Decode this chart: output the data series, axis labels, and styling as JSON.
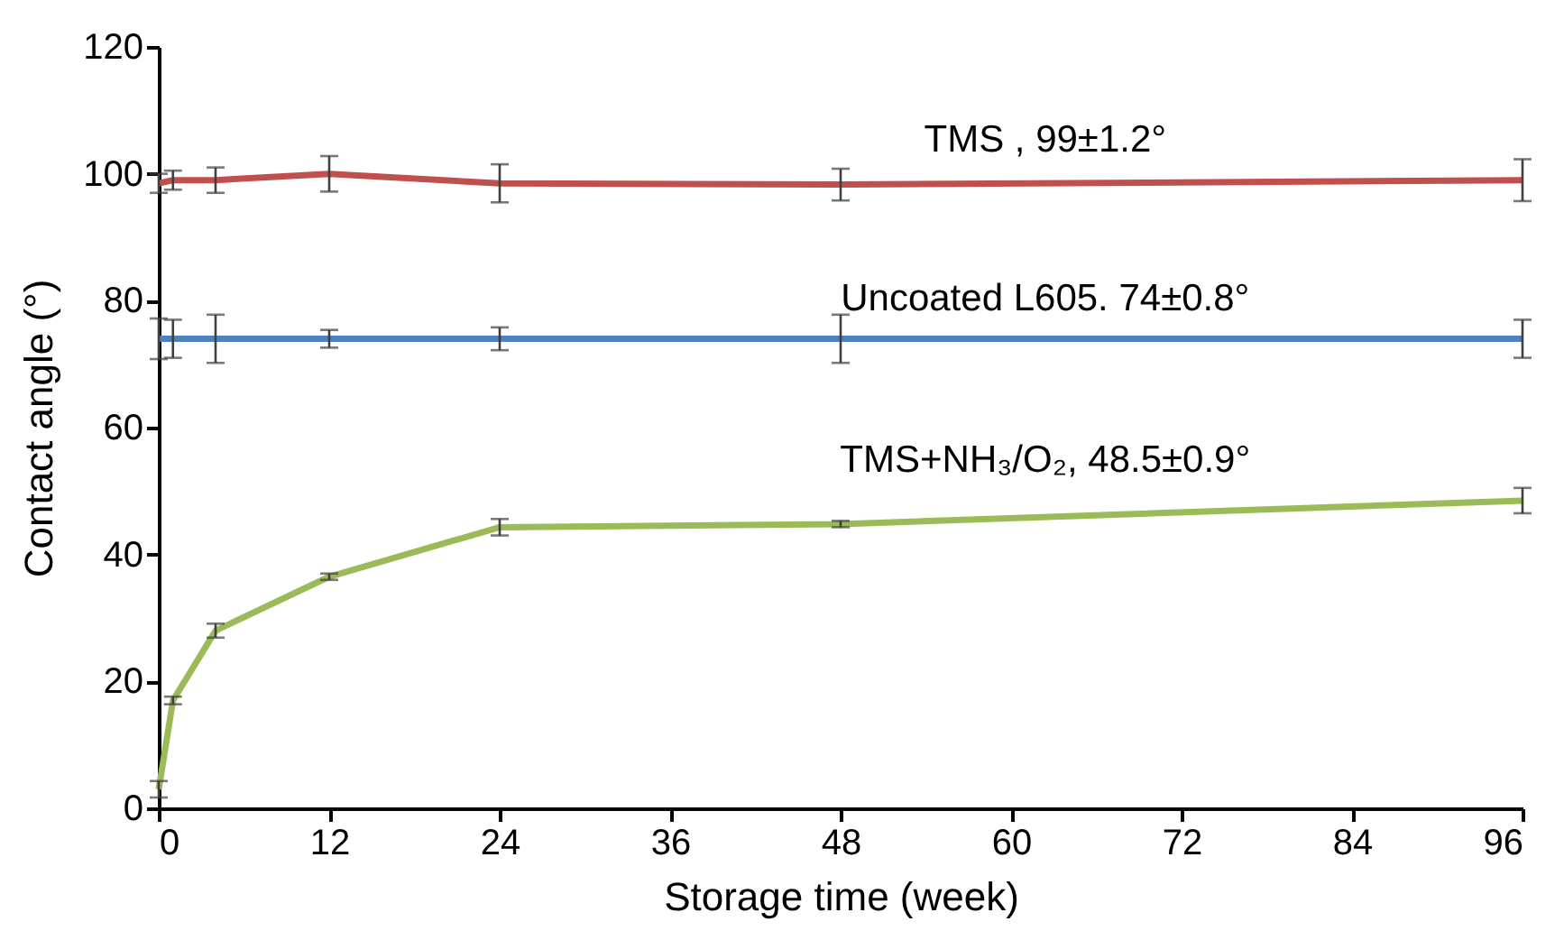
{
  "chart_data": {
    "type": "line",
    "xlabel": "Storage time (week)",
    "ylabel": "Contact angle (°)",
    "x": [
      0,
      1,
      4,
      12,
      24,
      48,
      96
    ],
    "xlim": [
      0,
      96
    ],
    "xticks": [
      0,
      12,
      24,
      36,
      48,
      60,
      72,
      84,
      96
    ],
    "ylim": [
      0,
      120
    ],
    "yticks": [
      0,
      20,
      40,
      60,
      80,
      100,
      120
    ],
    "grid": false,
    "series": [
      {
        "name": "TMS , 99±1.2°",
        "color": "#c0504d",
        "values": [
          98.5,
          99,
          99,
          100,
          98.5,
          98.3,
          99
        ],
        "errors": [
          1.5,
          1.5,
          2,
          2.8,
          3,
          2.5,
          3.3
        ]
      },
      {
        "name": "Uncoated L605. 74±0.8°",
        "color": "#4f81bd",
        "values": [
          74,
          74,
          74,
          74,
          74,
          74,
          74
        ],
        "errors": [
          3.2,
          3,
          3.8,
          1.4,
          1.8,
          3.8,
          3
        ]
      },
      {
        "name": "TMS+NH₃/O₂, 48.5±0.9°",
        "color": "#9bbb59",
        "values": [
          3,
          17,
          28,
          36.5,
          44.3,
          44.8,
          48.5
        ],
        "errors": [
          1.3,
          0.6,
          1.1,
          0.5,
          1.3,
          0.5,
          2
        ]
      }
    ]
  }
}
